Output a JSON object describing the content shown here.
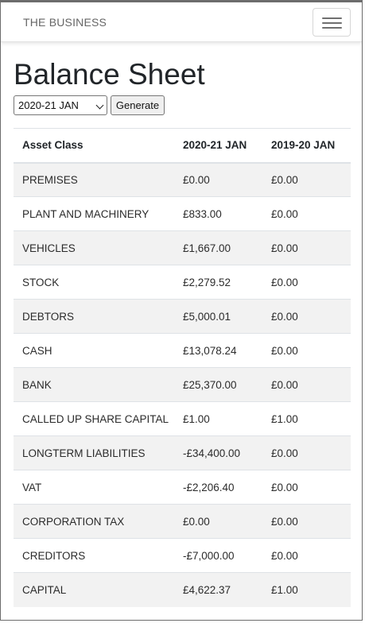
{
  "navbar": {
    "brand": "THE BUSINESS"
  },
  "page": {
    "title": "Balance Sheet"
  },
  "controls": {
    "selected_period": "2020-21 JAN",
    "generate_label": "Generate"
  },
  "table": {
    "headers": [
      "Asset Class",
      "2020-21 JAN",
      "2019-20 JAN"
    ],
    "rows": [
      [
        "PREMISES",
        "£0.00",
        "£0.00"
      ],
      [
        "PLANT AND MACHINERY",
        "£833.00",
        "£0.00"
      ],
      [
        "VEHICLES",
        "£1,667.00",
        "£0.00"
      ],
      [
        "STOCK",
        "£2,279.52",
        "£0.00"
      ],
      [
        "DEBTORS",
        "£5,000.01",
        "£0.00"
      ],
      [
        "CASH",
        "£13,078.24",
        "£0.00"
      ],
      [
        "BANK",
        "£25,370.00",
        "£0.00"
      ],
      [
        "CALLED UP SHARE CAPITAL",
        "£1.00",
        "£1.00"
      ],
      [
        "LONGTERM LIABILITIES",
        "-£34,400.00",
        "£0.00"
      ],
      [
        "VAT",
        "-£2,206.40",
        "£0.00"
      ],
      [
        "CORPORATION TAX",
        "£0.00",
        "£0.00"
      ],
      [
        "CREDITORS",
        "-£7,000.00",
        "£0.00"
      ],
      [
        "CAPITAL",
        "£4,622.37",
        "£1.00"
      ]
    ]
  }
}
